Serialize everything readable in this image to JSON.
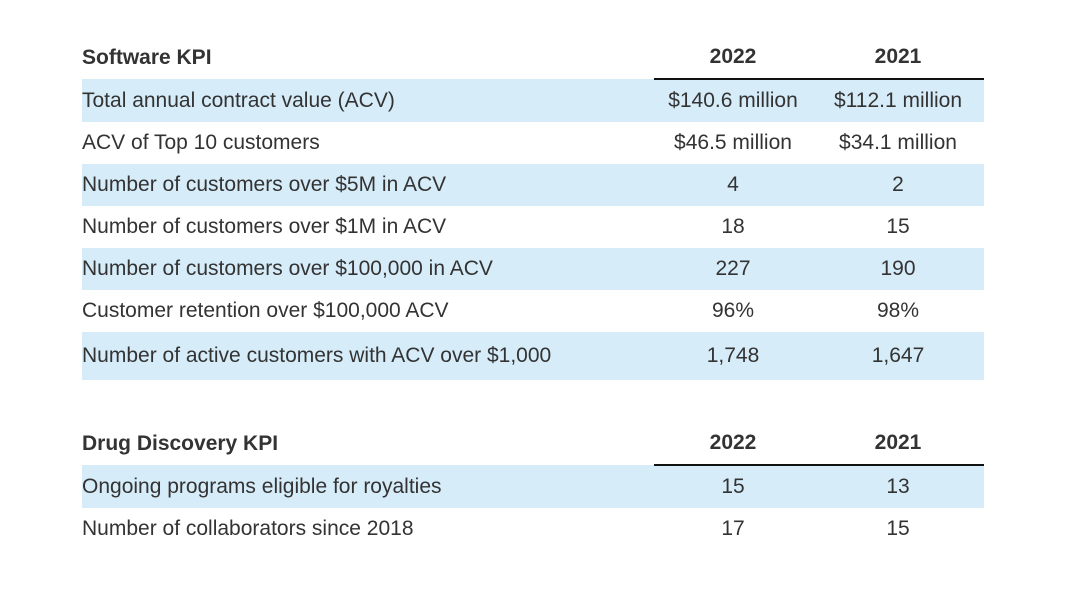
{
  "software": {
    "header": {
      "title": "Software KPI",
      "year1": "2022",
      "year2": "2021"
    },
    "rows": [
      {
        "label": "Total annual contract value (ACV)",
        "v1": "$140.6 million",
        "v2": "$112.1 million"
      },
      {
        "label": "ACV of Top 10 customers",
        "v1": "$46.5 million",
        "v2": "$34.1 million"
      },
      {
        "label": "Number of customers over $5M in ACV",
        "v1": "4",
        "v2": "2"
      },
      {
        "label": "Number of customers over $1M in ACV",
        "v1": "18",
        "v2": "15"
      },
      {
        "label": "Number of customers over $100,000 in ACV",
        "v1": "227",
        "v2": "190"
      },
      {
        "label": "Customer retention over $100,000 ACV",
        "v1": "96%",
        "v2": "98%"
      },
      {
        "label": "Number of active customers with ACV over $1,000",
        "v1": "1,748",
        "v2": "1,647"
      }
    ]
  },
  "drug": {
    "header": {
      "title": "Drug Discovery KPI",
      "year1": "2022",
      "year2": "2021"
    },
    "rows": [
      {
        "label": "Ongoing programs eligible for royalties",
        "v1": "15",
        "v2": "13"
      },
      {
        "label": "Number of collaborators since 2018",
        "v1": "17",
        "v2": "15"
      }
    ]
  },
  "colors": {
    "row_shade": "#d6ecf9",
    "text": "#333333",
    "rule": "#111111"
  }
}
